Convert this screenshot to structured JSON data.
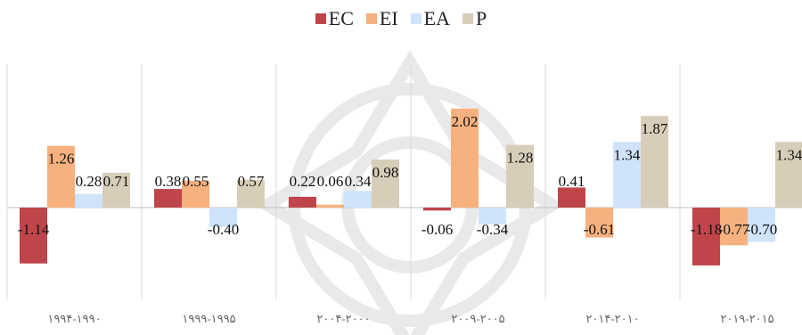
{
  "chart_data": {
    "type": "bar",
    "categories": [
      "۱۹۹۴-۱۹۹۰",
      "۱۹۹۹-۱۹۹۵",
      "۲۰۰۴-۲۰۰۰",
      "۲۰۰۹-۲۰۰۵",
      "۲۰۱۴-۲۰۱۰",
      "۲۰۱۹-۲۰۱۵"
    ],
    "series": [
      {
        "name": "EC",
        "values": [
          -1.14,
          0.38,
          0.22,
          -0.06,
          0.41,
          -1.18
        ],
        "labels": [
          "-1.14",
          "0.38",
          "0.22",
          "-0.06",
          "0.41",
          "-1.18"
        ]
      },
      {
        "name": "EI",
        "values": [
          1.26,
          0.55,
          0.06,
          2.02,
          -0.61,
          -0.77
        ],
        "labels": [
          "1.26",
          "0.55",
          "0.06",
          "2.02",
          "-0.61",
          "-0.77"
        ]
      },
      {
        "name": "EA",
        "values": [
          0.28,
          -0.4,
          0.34,
          -0.34,
          1.34,
          -0.7
        ],
        "labels": [
          "0.28",
          "-0.40",
          "0.34",
          "-0.34",
          "1.34",
          "-0.70"
        ]
      },
      {
        "name": "P",
        "values": [
          0.71,
          0.57,
          0.98,
          1.28,
          1.87,
          1.34
        ],
        "labels": [
          "0.71",
          "0.57",
          "0.98",
          "1.28",
          "1.87",
          "1.34"
        ]
      }
    ],
    "colors": [
      "#c0454a",
      "#f6b17f",
      "#cfe3fb",
      "#d8cdb8"
    ],
    "title": "",
    "xlabel": "",
    "ylabel": "",
    "ylim": [
      -1.9,
      2.4
    ],
    "legend_position": "top-center",
    "grid": false
  }
}
